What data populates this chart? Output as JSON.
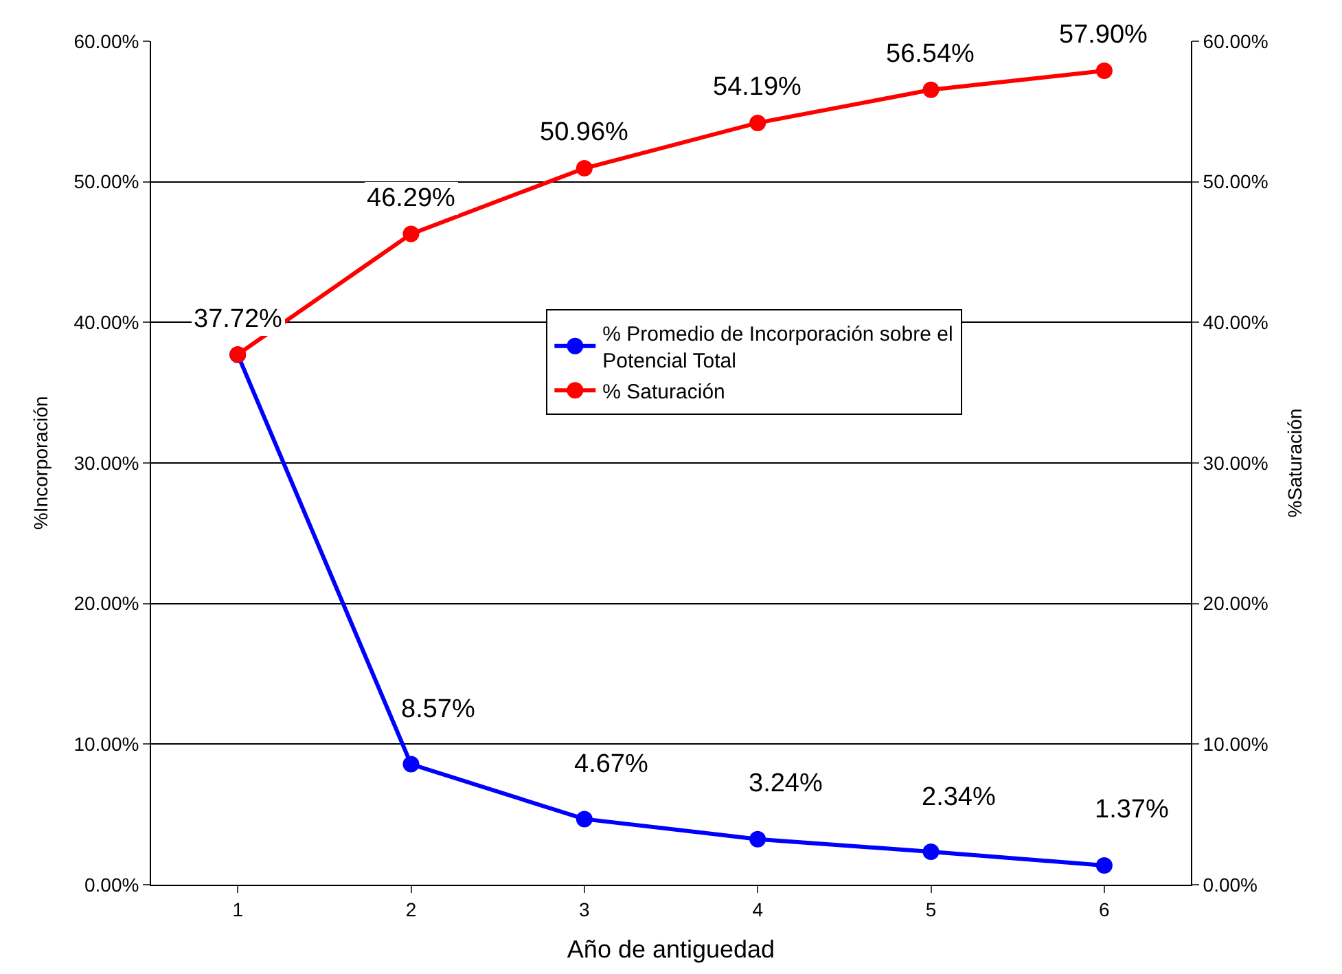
{
  "chart_data": {
    "type": "line",
    "xlabel": "Año de antiguedad",
    "ylabel": "%Incorporación",
    "y2label": "%Saturación",
    "categories": [
      "1",
      "2",
      "3",
      "4",
      "5",
      "6"
    ],
    "series": [
      {
        "name": "% Promedio de Incorporación sobre el Potencial Total",
        "color": "#0000ff",
        "values": [
          0.377,
          0.0857,
          0.0467,
          0.0324,
          0.0234,
          0.0137
        ],
        "value_labels": [
          null,
          "8.57%",
          "4.67%",
          "3.24%",
          "2.34%",
          "1.37%"
        ]
      },
      {
        "name": "% Saturación",
        "color": "#ff0000",
        "axis": "y2",
        "values": [
          0.3772,
          0.4629,
          0.5096,
          0.5419,
          0.5654,
          0.579
        ],
        "value_labels": [
          "37.72%",
          "46.29%",
          "50.96%",
          "54.19%",
          "56.54%",
          "57.90%"
        ]
      }
    ],
    "ylim": [
      0,
      0.6
    ],
    "yticks": [
      {
        "value": 0,
        "label": "0.00%"
      },
      {
        "value": 0.1,
        "label": "10.00%"
      },
      {
        "value": 0.2,
        "label": "20.00%"
      },
      {
        "value": 0.3,
        "label": "30.00%"
      },
      {
        "value": 0.4,
        "label": "40.00%"
      },
      {
        "value": 0.5,
        "label": "50.00%"
      },
      {
        "value": 0.6,
        "label": "60.00%"
      }
    ],
    "y2lim": [
      0,
      0.6
    ],
    "y2ticks": [
      {
        "value": 0,
        "label": "0.00%"
      },
      {
        "value": 0.1,
        "label": "10.00%"
      },
      {
        "value": 0.2,
        "label": "20.00%"
      },
      {
        "value": 0.3,
        "label": "30.00%"
      },
      {
        "value": 0.4,
        "label": "40.00%"
      },
      {
        "value": 0.5,
        "label": "50.00%"
      },
      {
        "value": 0.6,
        "label": "60.00%"
      }
    ],
    "grid": "y",
    "legend": "center",
    "marker": "circle",
    "line_style": "solid"
  }
}
